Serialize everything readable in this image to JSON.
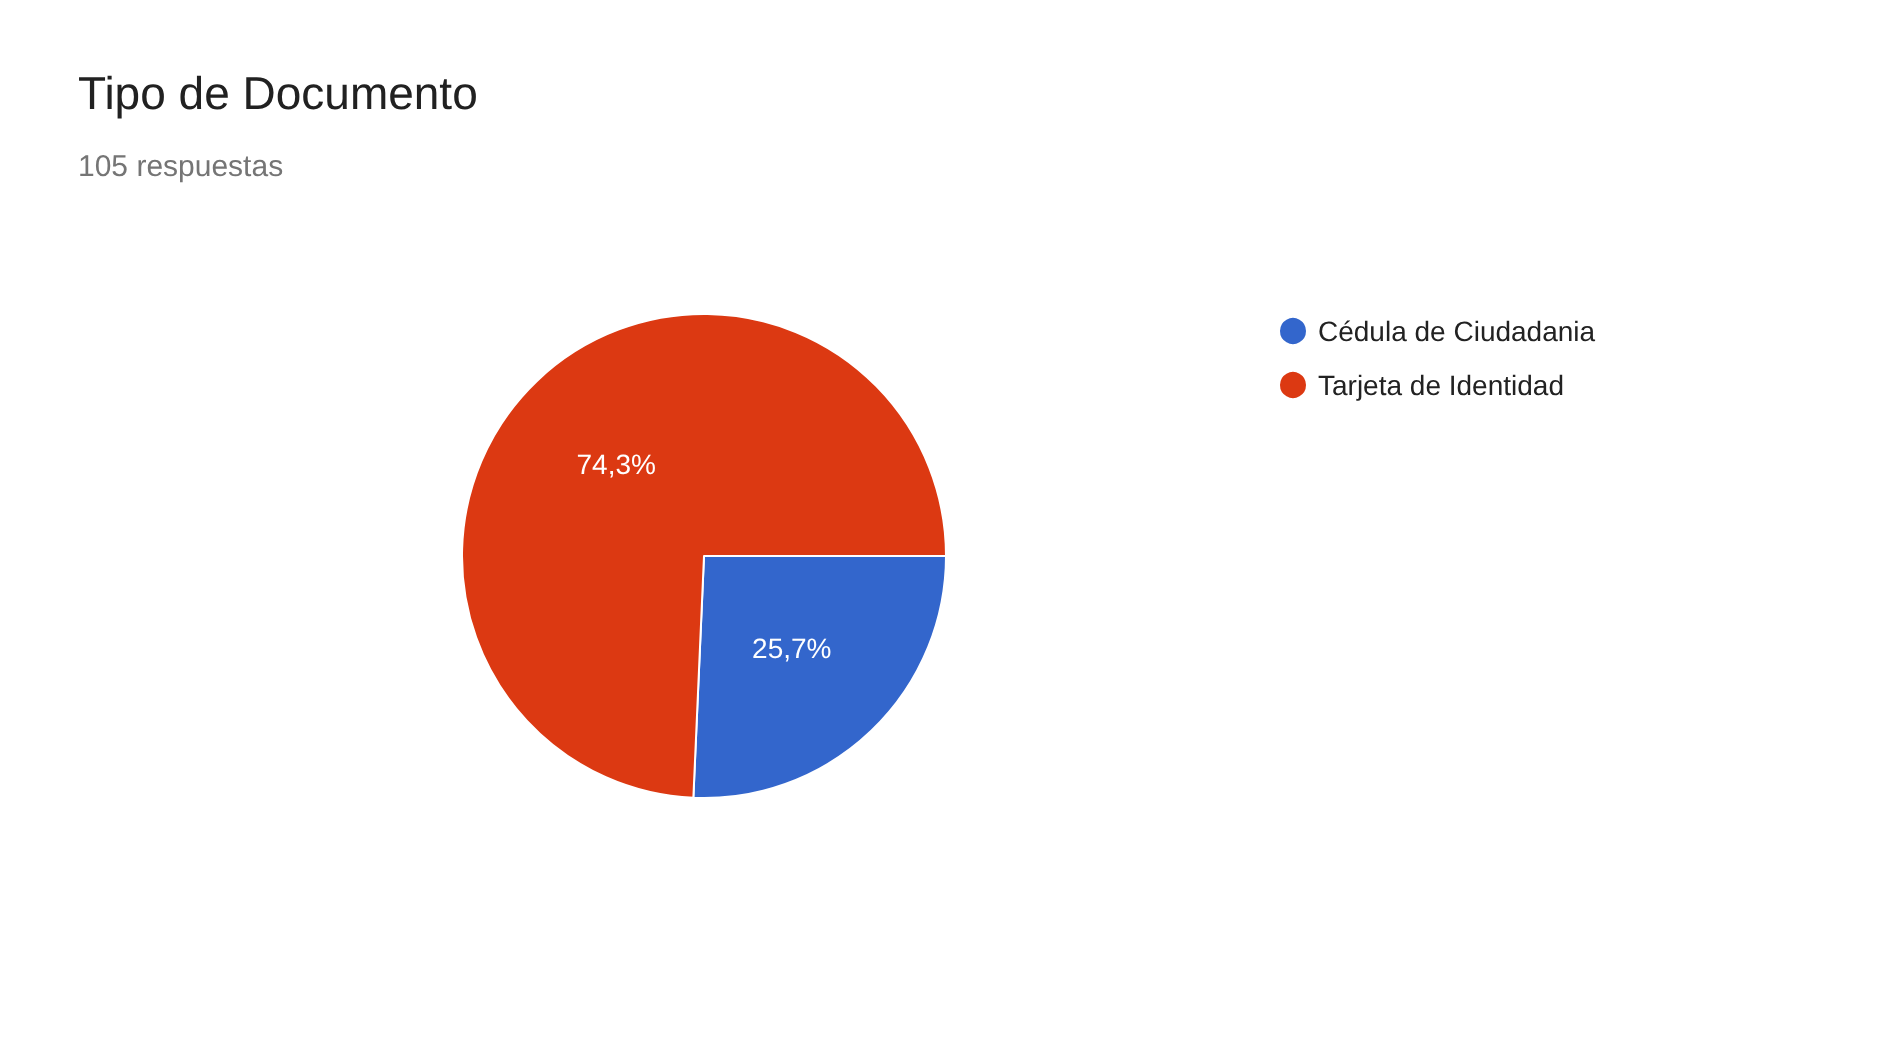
{
  "chart_data": {
    "type": "pie",
    "title": "Tipo de Documento",
    "subtitle": "105 respuestas",
    "categories": [
      "Cédula de Ciudadania",
      "Tarjeta de Identidad"
    ],
    "values": [
      25.7,
      74.3
    ],
    "colors": [
      "#3366cc",
      "#dc3912"
    ],
    "value_labels": [
      "25,7%",
      "74,3%"
    ],
    "legend": "top right"
  }
}
